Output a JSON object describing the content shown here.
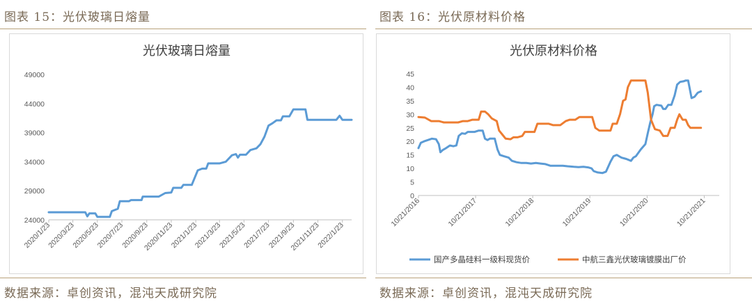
{
  "left_panel": {
    "figure_label": "图表 15：光伏玻璃日熔量",
    "source": "数据来源：卓创资讯，混沌天成研究院"
  },
  "right_panel": {
    "figure_label": "图表 16：光伏原材料价格",
    "source": "数据来源：卓创资讯，混沌天成研究院"
  },
  "colors": {
    "blue": "#5b9bd5",
    "orange": "#ed7d31",
    "gold_rule": "#b9a27a"
  },
  "chart_data": [
    {
      "type": "line",
      "title": "光伏玻璃日熔量",
      "ylim": [
        24000,
        49000
      ],
      "yticks": [
        24000,
        29000,
        34000,
        39000,
        44000,
        49000
      ],
      "yticklabels": [
        "24000",
        "29000",
        "34000",
        "39000",
        "44000",
        "49000"
      ],
      "xlim": [
        "2020-01-23",
        "2022-02-15"
      ],
      "xticklabels": [
        "2020/1/23",
        "2020/3/23",
        "2020/5/23",
        "2020/7/23",
        "2020/9/23",
        "2020/11/23",
        "2021/1/23",
        "2021/3/23",
        "2021/5/23",
        "2021/7/23",
        "2021/9/23",
        "2021/11/23",
        "2022/1/23"
      ],
      "xtickdates": [
        "2020-01-23",
        "2020-03-23",
        "2020-05-23",
        "2020-07-23",
        "2020-09-23",
        "2020-11-23",
        "2021-01-23",
        "2021-03-23",
        "2021-05-23",
        "2021-07-23",
        "2021-09-23",
        "2021-11-23",
        "2022-01-23"
      ],
      "grid": false,
      "series": [
        {
          "color": "#5b9bd5",
          "points": [
            [
              "2020-01-23",
              25300
            ],
            [
              "2020-04-23",
              25300
            ],
            [
              "2020-04-28",
              24600
            ],
            [
              "2020-05-03",
              25100
            ],
            [
              "2020-05-18",
              25100
            ],
            [
              "2020-05-23",
              24500
            ],
            [
              "2020-06-23",
              24500
            ],
            [
              "2020-06-28",
              25500
            ],
            [
              "2020-07-13",
              25900
            ],
            [
              "2020-07-18",
              27200
            ],
            [
              "2020-08-10",
              27200
            ],
            [
              "2020-08-15",
              27400
            ],
            [
              "2020-09-10",
              27400
            ],
            [
              "2020-09-13",
              28000
            ],
            [
              "2020-10-23",
              28000
            ],
            [
              "2020-11-08",
              28600
            ],
            [
              "2020-11-23",
              28700
            ],
            [
              "2020-11-28",
              29500
            ],
            [
              "2020-12-18",
              29500
            ],
            [
              "2020-12-23",
              30000
            ],
            [
              "2021-01-13",
              30000
            ],
            [
              "2021-01-28",
              32500
            ],
            [
              "2021-02-08",
              32800
            ],
            [
              "2021-02-18",
              32800
            ],
            [
              "2021-02-23",
              33700
            ],
            [
              "2021-03-23",
              33700
            ],
            [
              "2021-04-08",
              34000
            ],
            [
              "2021-04-23",
              35100
            ],
            [
              "2021-05-03",
              35300
            ],
            [
              "2021-05-08",
              34700
            ],
            [
              "2021-05-13",
              35200
            ],
            [
              "2021-05-28",
              35200
            ],
            [
              "2021-06-08",
              36000
            ],
            [
              "2021-06-23",
              36300
            ],
            [
              "2021-07-03",
              37000
            ],
            [
              "2021-07-13",
              38300
            ],
            [
              "2021-07-23",
              40200
            ],
            [
              "2021-08-02",
              40600
            ],
            [
              "2021-08-12",
              41100
            ],
            [
              "2021-08-23",
              41100
            ],
            [
              "2021-08-28",
              41800
            ],
            [
              "2021-09-13",
              41800
            ],
            [
              "2021-09-23",
              43000
            ],
            [
              "2021-10-23",
              43000
            ],
            [
              "2021-10-28",
              41200
            ],
            [
              "2022-01-08",
              41200
            ],
            [
              "2022-01-16",
              41900
            ],
            [
              "2022-01-23",
              41200
            ],
            [
              "2022-02-15",
              41200
            ]
          ]
        }
      ]
    },
    {
      "type": "line",
      "title": "光伏原材料价格",
      "ylim": [
        0,
        45
      ],
      "yticks": [
        0,
        5,
        10,
        15,
        20,
        25,
        30,
        35,
        40,
        45
      ],
      "yticklabels": [
        "0",
        "5",
        "10",
        "15",
        "20",
        "25",
        "30",
        "35",
        "40",
        "45"
      ],
      "xlim": [
        "2016-10-21",
        "2022-01-25"
      ],
      "xticklabels": [
        "10/21/2016",
        "10/21/2017",
        "10/21/2018",
        "10/21/2019",
        "10/21/2020",
        "10/21/2021"
      ],
      "xtickdates": [
        "2016-10-21",
        "2017-10-21",
        "2018-10-21",
        "2019-10-21",
        "2020-10-21",
        "2021-10-21"
      ],
      "grid": false,
      "legend": "bottom",
      "series": [
        {
          "name": "国产多晶硅料一级料现货价",
          "color": "#5b9bd5",
          "points": [
            [
              "2016-10-21",
              17.5
            ],
            [
              "2016-11-05",
              19.5
            ],
            [
              "2016-11-25",
              20.0
            ],
            [
              "2016-12-20",
              20.5
            ],
            [
              "2017-01-15",
              21.0
            ],
            [
              "2017-02-10",
              20.8
            ],
            [
              "2017-02-28",
              19.0
            ],
            [
              "2017-03-10",
              16.0
            ],
            [
              "2017-03-25",
              16.8
            ],
            [
              "2017-04-15",
              17.5
            ],
            [
              "2017-05-10",
              18.5
            ],
            [
              "2017-06-01",
              18.2
            ],
            [
              "2017-06-20",
              18.5
            ],
            [
              "2017-07-05",
              22.0
            ],
            [
              "2017-07-25",
              23.0
            ],
            [
              "2017-08-15",
              22.8
            ],
            [
              "2017-09-01",
              23.5
            ],
            [
              "2017-10-15",
              23.5
            ],
            [
              "2017-11-10",
              24.0
            ],
            [
              "2017-12-05",
              24.0
            ],
            [
              "2017-12-20",
              21.0
            ],
            [
              "2018-01-05",
              20.5
            ],
            [
              "2018-01-20",
              21.0
            ],
            [
              "2018-02-20",
              21.0
            ],
            [
              "2018-03-10",
              17.0
            ],
            [
              "2018-03-25",
              15.0
            ],
            [
              "2018-04-20",
              14.5
            ],
            [
              "2018-05-20",
              14.0
            ],
            [
              "2018-06-10",
              12.8
            ],
            [
              "2018-07-10",
              12.3
            ],
            [
              "2018-08-10",
              12.0
            ],
            [
              "2018-09-10",
              12.0
            ],
            [
              "2018-10-10",
              11.8
            ],
            [
              "2018-11-10",
              12.0
            ],
            [
              "2018-12-10",
              11.8
            ],
            [
              "2019-01-10",
              11.6
            ],
            [
              "2019-02-10",
              11.0
            ],
            [
              "2019-03-10",
              11.0
            ],
            [
              "2019-05-01",
              11.0
            ],
            [
              "2019-06-01",
              10.8
            ],
            [
              "2019-07-10",
              10.6
            ],
            [
              "2019-08-10",
              10.5
            ],
            [
              "2019-09-10",
              10.6
            ],
            [
              "2019-10-10",
              10.4
            ],
            [
              "2019-11-01",
              10.0
            ],
            [
              "2019-11-15",
              9.0
            ],
            [
              "2019-12-10",
              8.5
            ],
            [
              "2020-01-10",
              8.3
            ],
            [
              "2020-02-01",
              8.8
            ],
            [
              "2020-03-01",
              12.5
            ],
            [
              "2020-03-20",
              14.5
            ],
            [
              "2020-04-10",
              15.0
            ],
            [
              "2020-05-10",
              14.0
            ],
            [
              "2020-06-10",
              13.5
            ],
            [
              "2020-07-10",
              12.8
            ],
            [
              "2020-07-25",
              14.0
            ],
            [
              "2020-08-10",
              14.5
            ],
            [
              "2020-09-10",
              17.0
            ],
            [
              "2020-10-10",
              19.0
            ],
            [
              "2020-10-25",
              23.0
            ],
            [
              "2020-11-10",
              27.0
            ],
            [
              "2020-11-25",
              30.0
            ],
            [
              "2020-12-05",
              33.0
            ],
            [
              "2020-12-20",
              33.5
            ],
            [
              "2021-01-20",
              33.2
            ],
            [
              "2021-02-01",
              32.0
            ],
            [
              "2021-02-15",
              32.0
            ],
            [
              "2021-03-05",
              33.5
            ],
            [
              "2021-03-25",
              33.5
            ],
            [
              "2021-04-15",
              37.0
            ],
            [
              "2021-05-01",
              41.0
            ],
            [
              "2021-05-20",
              42.0
            ],
            [
              "2021-06-10",
              42.2
            ],
            [
              "2021-06-25",
              42.5
            ],
            [
              "2021-07-10",
              42.5
            ],
            [
              "2021-08-01",
              36.0
            ],
            [
              "2021-08-20",
              36.5
            ],
            [
              "2021-09-10",
              38.0
            ],
            [
              "2021-09-30",
              38.5
            ]
          ]
        },
        {
          "name": "中航三鑫光伏玻璃镀膜出厂价",
          "color": "#ed7d31",
          "points": [
            [
              "2016-10-21",
              29.0
            ],
            [
              "2016-12-01",
              28.8
            ],
            [
              "2017-01-10",
              27.5
            ],
            [
              "2017-03-01",
              27.5
            ],
            [
              "2017-04-01",
              27.0
            ],
            [
              "2017-06-01",
              27.0
            ],
            [
              "2017-07-01",
              27.0
            ],
            [
              "2017-08-01",
              27.5
            ],
            [
              "2017-09-01",
              27.5
            ],
            [
              "2017-10-01",
              28.0
            ],
            [
              "2017-11-10",
              28.0
            ],
            [
              "2017-11-25",
              31.0
            ],
            [
              "2017-12-20",
              31.0
            ],
            [
              "2018-01-10",
              30.0
            ],
            [
              "2018-02-01",
              28.5
            ],
            [
              "2018-03-05",
              27.5
            ],
            [
              "2018-03-20",
              24.0
            ],
            [
              "2018-04-10",
              22.5
            ],
            [
              "2018-05-01",
              21.0
            ],
            [
              "2018-06-01",
              20.8
            ],
            [
              "2018-06-20",
              21.5
            ],
            [
              "2018-07-15",
              21.5
            ],
            [
              "2018-08-15",
              22.0
            ],
            [
              "2018-09-01",
              23.5
            ],
            [
              "2018-10-01",
              23.5
            ],
            [
              "2018-11-01",
              23.5
            ],
            [
              "2018-11-20",
              26.5
            ],
            [
              "2018-12-20",
              26.5
            ],
            [
              "2019-02-01",
              26.5
            ],
            [
              "2019-03-01",
              26.0
            ],
            [
              "2019-04-15",
              26.0
            ],
            [
              "2019-05-20",
              27.5
            ],
            [
              "2019-06-15",
              28.0
            ],
            [
              "2019-07-20",
              28.0
            ],
            [
              "2019-08-15",
              29.0
            ],
            [
              "2019-09-15",
              29.0
            ],
            [
              "2019-10-15",
              29.0
            ],
            [
              "2019-11-05",
              29.0
            ],
            [
              "2019-11-25",
              25.0
            ],
            [
              "2019-12-20",
              24.0
            ],
            [
              "2020-02-01",
              24.0
            ],
            [
              "2020-03-01",
              24.0
            ],
            [
              "2020-03-15",
              26.5
            ],
            [
              "2020-04-10",
              26.5
            ],
            [
              "2020-05-01",
              30.0
            ],
            [
              "2020-05-20",
              35.0
            ],
            [
              "2020-06-05",
              35.5
            ],
            [
              "2020-06-20",
              40.0
            ],
            [
              "2020-07-10",
              42.5
            ],
            [
              "2020-09-01",
              42.5
            ],
            [
              "2020-10-10",
              42.5
            ],
            [
              "2020-10-25",
              38.0
            ],
            [
              "2020-11-15",
              28.0
            ],
            [
              "2020-12-10",
              24.5
            ],
            [
              "2021-01-10",
              24.0
            ],
            [
              "2021-02-01",
              22.0
            ],
            [
              "2021-03-01",
              22.0
            ],
            [
              "2021-03-20",
              25.0
            ],
            [
              "2021-04-15",
              25.0
            ],
            [
              "2021-05-01",
              28.0
            ],
            [
              "2021-05-15",
              30.0
            ],
            [
              "2021-06-05",
              28.0
            ],
            [
              "2021-06-25",
              28.0
            ],
            [
              "2021-07-10",
              26.0
            ],
            [
              "2021-07-25",
              25.0
            ],
            [
              "2021-09-30",
              25.0
            ]
          ]
        }
      ]
    }
  ]
}
